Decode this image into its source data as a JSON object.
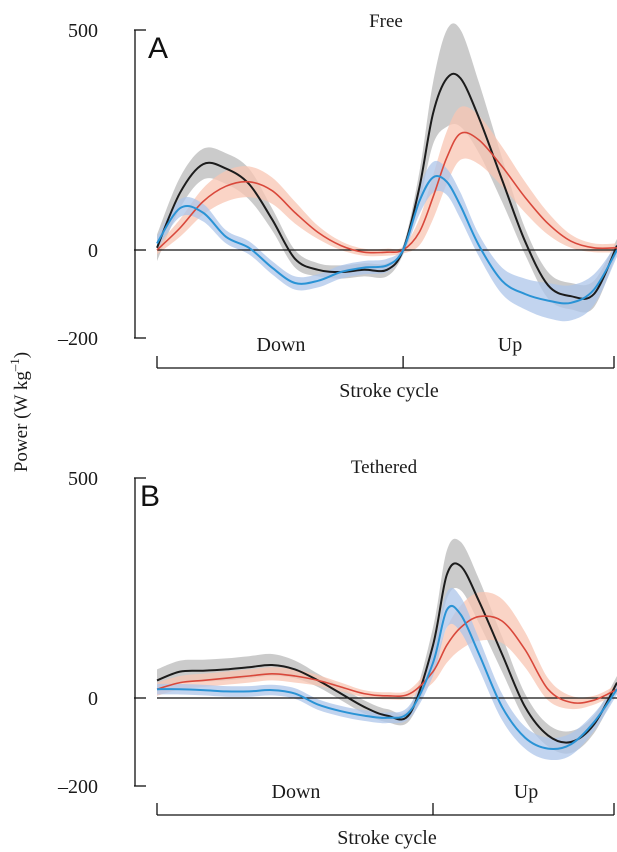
{
  "colors": {
    "black_line": "#1c1c1c",
    "black_band": "#b9b9b9",
    "red_line": "#d9483b",
    "red_band": "#f8c6b3",
    "blue_line": "#2a93d5",
    "blue_band": "#aec6ea",
    "axis": "#111111"
  },
  "ylabel": "Power (W kg",
  "ylabel_sup": "–1",
  "ylabel_close": ")",
  "chart_data": [
    {
      "type": "line",
      "panel": "A",
      "title": "Free",
      "xlabel": "Stroke cycle",
      "phase_labels": [
        "Down",
        "Up"
      ],
      "phase_split": 0.535,
      "ylim": [
        -200,
        500
      ],
      "yticks": [
        500,
        0,
        -200
      ],
      "ytick_labels": [
        "500",
        "0",
        "–200"
      ],
      "x": [
        0,
        0.05,
        0.1,
        0.15,
        0.2,
        0.25,
        0.3,
        0.35,
        0.4,
        0.45,
        0.5,
        0.535,
        0.57,
        0.6,
        0.63,
        0.66,
        0.7,
        0.75,
        0.8,
        0.85,
        0.9,
        0.95,
        1.0
      ],
      "series": [
        {
          "color_key": "black",
          "values": [
            5,
            130,
            195,
            185,
            150,
            70,
            -20,
            -45,
            -50,
            -45,
            -45,
            0,
            140,
            310,
            390,
            390,
            300,
            160,
            20,
            -80,
            -105,
            -100,
            10
          ],
          "band": [
            30,
            35,
            35,
            35,
            35,
            25,
            20,
            15,
            15,
            15,
            15,
            10,
            35,
            70,
            110,
            110,
            80,
            50,
            30,
            30,
            30,
            30,
            15
          ]
        },
        {
          "color_key": "red",
          "values": [
            0,
            50,
            110,
            145,
            155,
            135,
            85,
            40,
            10,
            -5,
            -5,
            0,
            40,
            120,
            210,
            265,
            250,
            190,
            120,
            60,
            20,
            5,
            5
          ],
          "band": [
            10,
            20,
            30,
            35,
            35,
            30,
            25,
            15,
            10,
            8,
            8,
            8,
            30,
            50,
            60,
            60,
            55,
            45,
            35,
            25,
            15,
            10,
            10
          ]
        },
        {
          "color_key": "blue",
          "values": [
            15,
            95,
            85,
            30,
            5,
            -40,
            -75,
            -70,
            -50,
            -40,
            -35,
            0,
            110,
            165,
            155,
            100,
            10,
            -70,
            -100,
            -115,
            -120,
            -90,
            0
          ],
          "band": [
            15,
            20,
            20,
            15,
            15,
            15,
            15,
            15,
            15,
            15,
            15,
            10,
            30,
            35,
            30,
            30,
            25,
            30,
            35,
            40,
            40,
            35,
            15
          ]
        }
      ]
    },
    {
      "type": "line",
      "panel": "B",
      "title": "Tethered",
      "xlabel": "Stroke cycle",
      "phase_labels": [
        "Down",
        "Up"
      ],
      "phase_split": 0.6,
      "ylim": [
        -200,
        500
      ],
      "yticks": [
        500,
        0,
        -200
      ],
      "ytick_labels": [
        "500",
        "0",
        "–200"
      ],
      "x": [
        0,
        0.05,
        0.1,
        0.15,
        0.2,
        0.25,
        0.3,
        0.35,
        0.4,
        0.45,
        0.5,
        0.55,
        0.6,
        0.63,
        0.66,
        0.7,
        0.75,
        0.8,
        0.85,
        0.9,
        0.95,
        1.0
      ],
      "series": [
        {
          "color_key": "black",
          "values": [
            40,
            60,
            62,
            65,
            70,
            75,
            65,
            40,
            10,
            -20,
            -40,
            -35,
            120,
            280,
            300,
            220,
            100,
            -20,
            -85,
            -100,
            -60,
            35
          ],
          "band": [
            25,
            25,
            25,
            25,
            25,
            25,
            20,
            15,
            15,
            15,
            15,
            15,
            40,
            55,
            55,
            50,
            40,
            30,
            25,
            25,
            20,
            15
          ]
        },
        {
          "color_key": "red",
          "values": [
            20,
            35,
            40,
            45,
            50,
            55,
            50,
            40,
            25,
            10,
            5,
            10,
            60,
            120,
            160,
            185,
            175,
            110,
            20,
            -10,
            -5,
            20
          ],
          "band": [
            15,
            15,
            15,
            15,
            15,
            15,
            15,
            12,
            10,
            8,
            8,
            10,
            25,
            40,
            50,
            55,
            50,
            40,
            25,
            15,
            10,
            10
          ]
        },
        {
          "color_key": "blue",
          "values": [
            20,
            20,
            18,
            15,
            15,
            18,
            10,
            -15,
            -30,
            -40,
            -45,
            -30,
            80,
            200,
            190,
            100,
            -20,
            -90,
            -115,
            -105,
            -55,
            20
          ],
          "band": [
            12,
            12,
            12,
            12,
            12,
            12,
            12,
            12,
            12,
            12,
            12,
            15,
            30,
            40,
            40,
            35,
            30,
            25,
            25,
            25,
            20,
            12
          ]
        }
      ]
    }
  ]
}
